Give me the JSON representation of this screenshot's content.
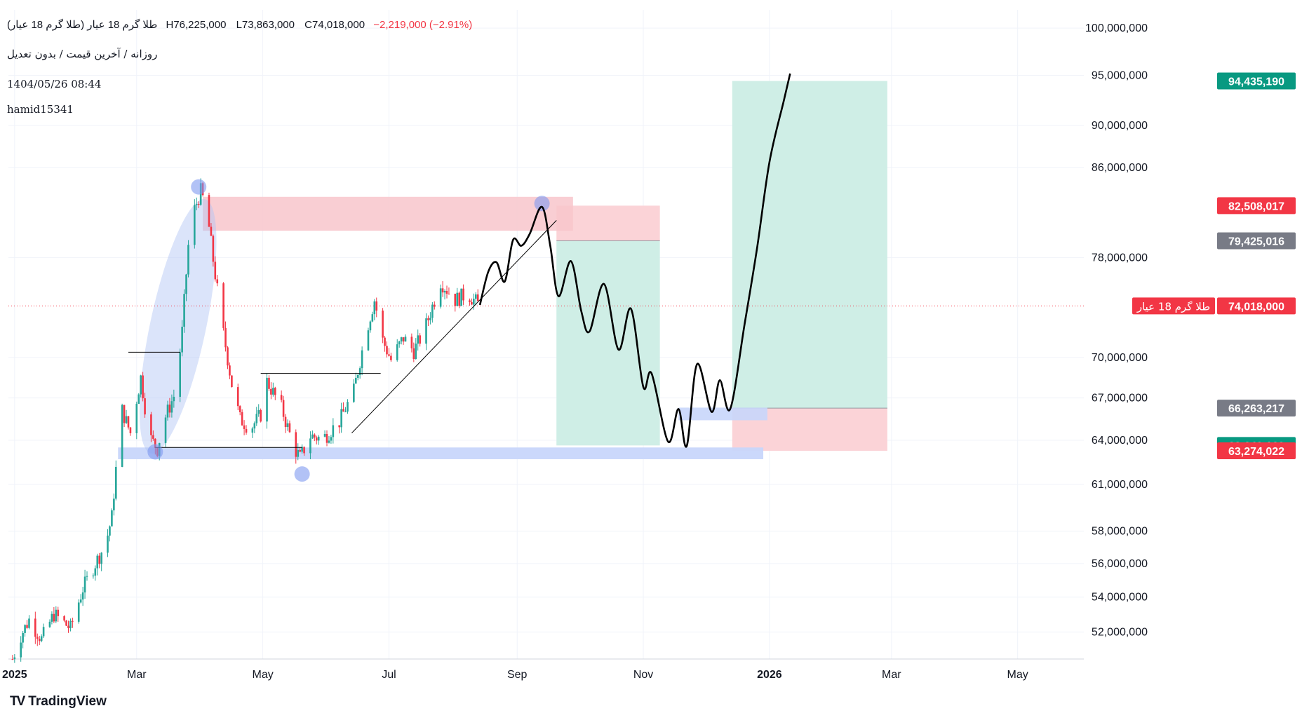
{
  "header": {
    "symbol": "طلا گرم 18 عیار (طلا گرم 18 عیار)",
    "high": "H76,225,000",
    "low": "L73,863,000",
    "close": "C74,018,000",
    "change": "−2,219,000 (−2.91%)",
    "interval": "روزانه / آخرین قیمت / بدون تعدیل",
    "datetime": "1404/05/26 08:44",
    "author": "hamid15341"
  },
  "brand": {
    "name": "TradingView",
    "logo": "TV"
  },
  "colors": {
    "up": "#26a69a",
    "down": "#f23645",
    "grid": "#f0f3fa",
    "profit_zone": "#cfeee6",
    "loss_zone": "#fbd3d7",
    "support_zone": "#c8d6fb",
    "resistance_zone": "#f8c6cb",
    "highlight": "#b0c4f5",
    "drawing": "#000000"
  },
  "price_labels": [
    {
      "text": "94,435,190",
      "value": 94435190,
      "color": "#089981"
    },
    {
      "text": "82,508,017",
      "value": 82508017,
      "color": "#f23645"
    },
    {
      "text": "79,425,016",
      "value": 79425016,
      "color": "#787b86"
    },
    {
      "text": "74,018,000",
      "value": 74018000,
      "color": "#f23645",
      "tag": "طلا گرم 18 عیار"
    },
    {
      "text": "66,263,217",
      "value": 66263217,
      "color": "#787b86"
    },
    {
      "text": "63,640,169",
      "value": 63640169,
      "color": "#089981"
    },
    {
      "text": "63,274,022",
      "value": 63274022,
      "color": "#f23645"
    }
  ],
  "chart_data": {
    "type": "candlestick",
    "y_scale": "log",
    "ylim": [
      50500000,
      102000000
    ],
    "y_ticks": [
      {
        "value": 100000000,
        "label": "100,000,000"
      },
      {
        "value": 95000000,
        "label": "95,000,000"
      },
      {
        "value": 90000000,
        "label": "90,000,000"
      },
      {
        "value": 86000000,
        "label": "86,000,000"
      },
      {
        "value": 78000000,
        "label": "78,000,000"
      },
      {
        "value": 70000000,
        "label": "70,000,000"
      },
      {
        "value": 67000000,
        "label": "67,000,000"
      },
      {
        "value": 64000000,
        "label": "64,000,000"
      },
      {
        "value": 61000000,
        "label": "61,000,000"
      },
      {
        "value": 58000000,
        "label": "58,000,000"
      },
      {
        "value": 56000000,
        "label": "56,000,000"
      },
      {
        "value": 54000000,
        "label": "54,000,000"
      },
      {
        "value": 52000000,
        "label": "52,000,000"
      }
    ],
    "x_range": [
      "2024-12-29",
      "2026-06-02"
    ],
    "x_ticks": [
      {
        "date": "2025-01-01",
        "label": "2025",
        "bold": true
      },
      {
        "date": "2025-03-01",
        "label": "Mar"
      },
      {
        "date": "2025-05-01",
        "label": "May"
      },
      {
        "date": "2025-07-01",
        "label": "Jul"
      },
      {
        "date": "2025-09-01",
        "label": "Sep"
      },
      {
        "date": "2025-11-01",
        "label": "Nov"
      },
      {
        "date": "2026-01-01",
        "label": "2026",
        "bold": true
      },
      {
        "date": "2026-03-01",
        "label": "Mar"
      },
      {
        "date": "2026-05-01",
        "label": "May"
      }
    ],
    "last_price": 74018000,
    "series_waypoints": [
      [
        "2024-12-31",
        50500000
      ],
      [
        "2025-01-04",
        51800000
      ],
      [
        "2025-01-08",
        52700000
      ],
      [
        "2025-01-14",
        51600000
      ],
      [
        "2025-01-20",
        53000000
      ],
      [
        "2025-01-28",
        52200000
      ],
      [
        "2025-02-03",
        54500000
      ],
      [
        "2025-02-09",
        56000000
      ],
      [
        "2025-02-14",
        57200000
      ],
      [
        "2025-02-17",
        58900000
      ],
      [
        "2025-02-19",
        62000000
      ],
      [
        "2025-02-21",
        66500000
      ],
      [
        "2025-02-26",
        64500000
      ],
      [
        "2025-03-03",
        68500000
      ],
      [
        "2025-03-07",
        64300000
      ],
      [
        "2025-03-11",
        63400000
      ],
      [
        "2025-03-14",
        65300000
      ],
      [
        "2025-03-20",
        67500000
      ],
      [
        "2025-03-23",
        72000000
      ],
      [
        "2025-03-26",
        79000000
      ],
      [
        "2025-03-29",
        82200000
      ],
      [
        "2025-04-01",
        83800000
      ],
      [
        "2025-04-04",
        82000000
      ],
      [
        "2025-04-07",
        77800000
      ],
      [
        "2025-04-11",
        72800000
      ],
      [
        "2025-04-16",
        68000000
      ],
      [
        "2025-04-20",
        65500000
      ],
      [
        "2025-04-25",
        64800000
      ],
      [
        "2025-04-30",
        65800000
      ],
      [
        "2025-05-03",
        68200000
      ],
      [
        "2025-05-10",
        66300000
      ],
      [
        "2025-05-16",
        63500000
      ],
      [
        "2025-05-19",
        62800000
      ],
      [
        "2025-05-24",
        64300000
      ],
      [
        "2025-05-30",
        64100000
      ],
      [
        "2025-06-07",
        65300000
      ],
      [
        "2025-06-14",
        67500000
      ],
      [
        "2025-06-20",
        72000000
      ],
      [
        "2025-06-24",
        74500000
      ],
      [
        "2025-06-28",
        71300000
      ],
      [
        "2025-07-02",
        69800000
      ],
      [
        "2025-07-08",
        71500000
      ],
      [
        "2025-07-13",
        70500000
      ],
      [
        "2025-07-18",
        72000000
      ],
      [
        "2025-07-26",
        76000000
      ],
      [
        "2025-08-02",
        74500000
      ],
      [
        "2025-08-08",
        75000000
      ],
      [
        "2025-08-14",
        74018000
      ]
    ],
    "drawings": {
      "resistance_zone": {
        "from": "2025-04-02",
        "to": "2025-09-28",
        "low": 80300000,
        "high": 83300000
      },
      "support_zone": {
        "from": "2025-02-20",
        "to": "2025-12-29",
        "low": 62700000,
        "high": 63500000
      },
      "short_position": {
        "from": "2025-09-20",
        "to": "2025-11-09",
        "entry": 79425016,
        "stop": 82508017,
        "target": 63640169
      },
      "long_position": {
        "from": "2025-12-14",
        "to": "2026-02-27",
        "entry": 66263217,
        "stop": 63274022,
        "target": 94435190
      },
      "small_support_zone": {
        "from": "2025-11-18",
        "to": "2025-12-31",
        "low": 65400000,
        "high": 66300000
      },
      "trendline": {
        "from": [
          "2025-06-13",
          64500000
        ],
        "to": [
          "2025-09-20",
          81200000
        ]
      },
      "hlines": [
        {
          "from": "2025-02-25",
          "to": "2025-03-22",
          "value": 70400000
        },
        {
          "from": "2025-04-30",
          "to": "2025-06-27",
          "value": 68800000
        },
        {
          "from": "2025-03-10",
          "to": "2025-05-20",
          "value": 63500000
        }
      ],
      "circles": [
        {
          "date": "2025-03-31",
          "value": 84200000
        },
        {
          "date": "2025-03-10",
          "value": 63200000
        },
        {
          "date": "2025-05-20",
          "value": 61700000
        },
        {
          "date": "2025-09-13",
          "value": 82700000
        }
      ],
      "ellipse": {
        "center": [
          "2025-03-21",
          72400000
        ],
        "from": "2025-03-07",
        "to": "2025-04-03",
        "low": 63700000,
        "high": 84400000
      },
      "projection": [
        [
          "2025-08-14",
          74100000
        ],
        [
          "2025-08-18",
          76800000
        ],
        [
          "2025-08-22",
          77600000
        ],
        [
          "2025-08-26",
          76000000
        ],
        [
          "2025-08-30",
          79500000
        ],
        [
          "2025-09-03",
          79000000
        ],
        [
          "2025-09-07",
          80000000
        ],
        [
          "2025-09-13",
          82400000
        ],
        [
          "2025-09-17",
          79000000
        ],
        [
          "2025-09-21",
          74800000
        ],
        [
          "2025-09-27",
          77700000
        ],
        [
          "2025-10-02",
          73600000
        ],
        [
          "2025-10-06",
          72000000
        ],
        [
          "2025-10-13",
          75800000
        ],
        [
          "2025-10-20",
          70600000
        ],
        [
          "2025-10-26",
          73800000
        ],
        [
          "2025-11-01",
          67800000
        ],
        [
          "2025-11-05",
          68800000
        ],
        [
          "2025-11-13",
          63900000
        ],
        [
          "2025-11-18",
          66200000
        ],
        [
          "2025-11-22",
          63600000
        ],
        [
          "2025-11-27",
          69500000
        ],
        [
          "2025-12-04",
          66000000
        ],
        [
          "2025-12-08",
          68300000
        ],
        [
          "2025-12-13",
          66200000
        ],
        [
          "2025-12-20",
          72600000
        ],
        [
          "2025-12-26",
          78800000
        ],
        [
          "2026-01-01",
          86500000
        ],
        [
          "2026-01-08",
          92500000
        ],
        [
          "2026-01-11",
          95200000
        ]
      ]
    }
  }
}
